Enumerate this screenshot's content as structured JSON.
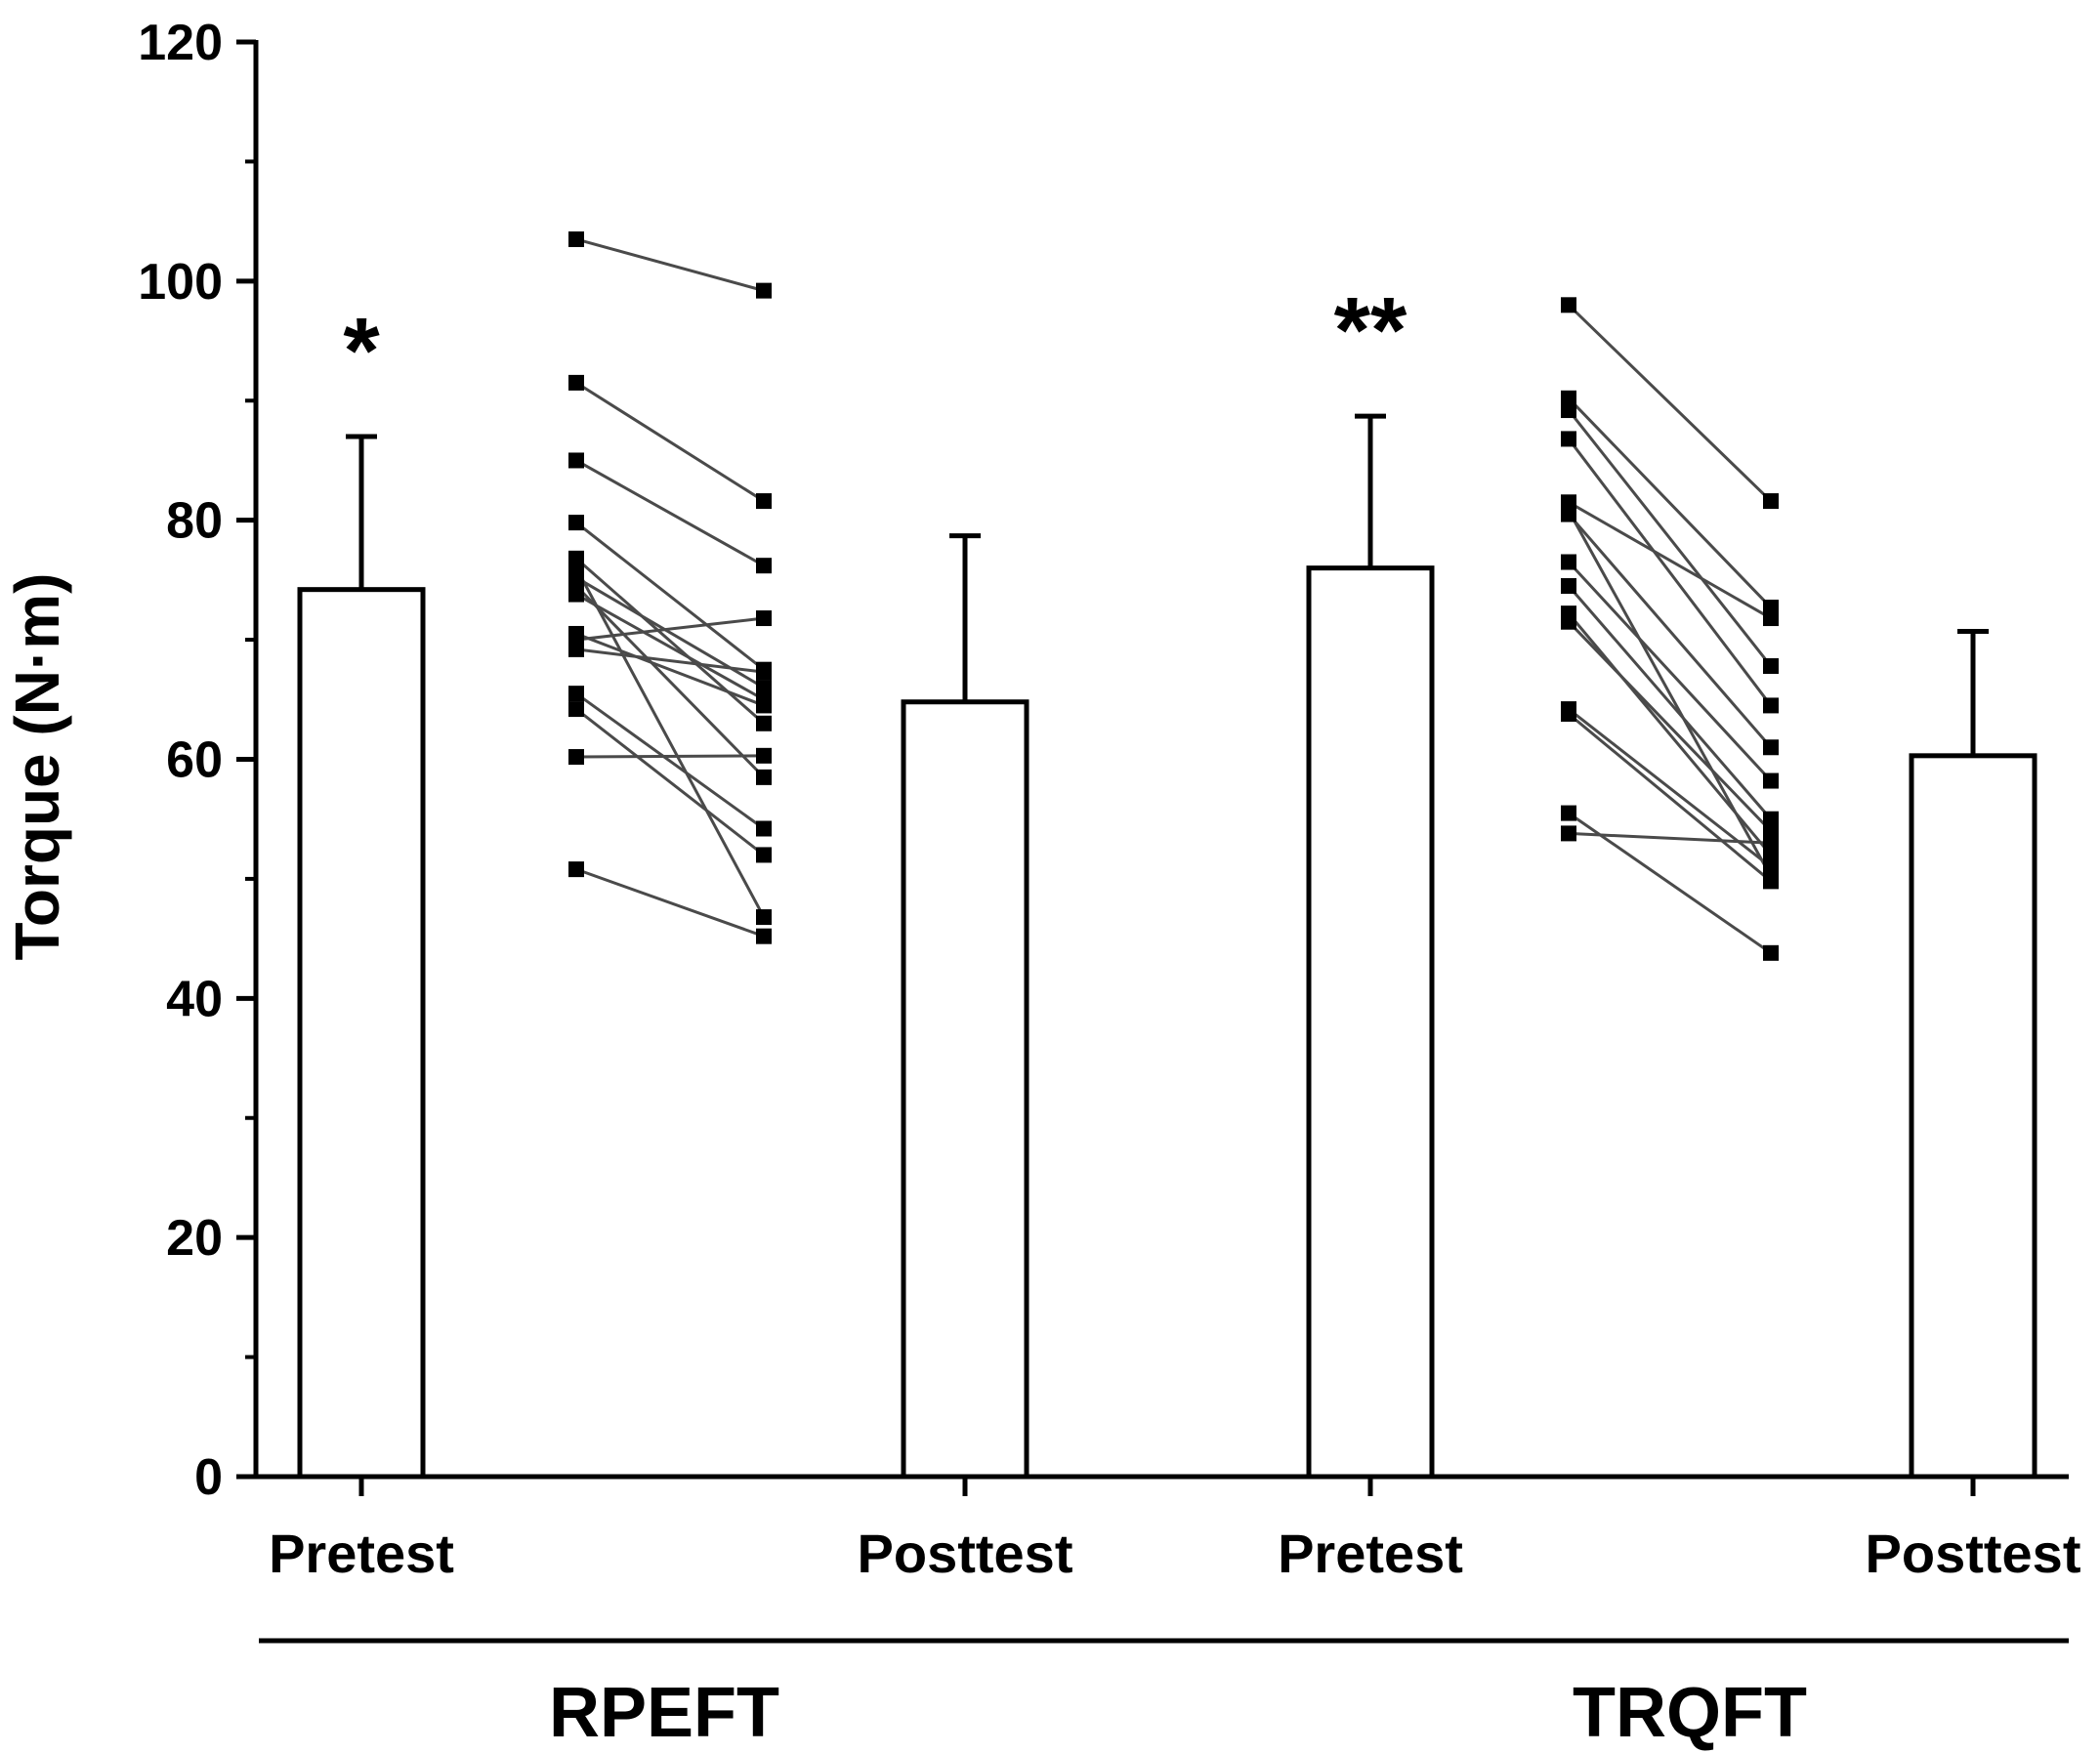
{
  "chart_data": {
    "type": "bar",
    "ylabel": "Torque (N·m)",
    "ylim": [
      0,
      120
    ],
    "y_ticks": [
      "0",
      "20",
      "40",
      "60",
      "80",
      "100",
      "120"
    ],
    "categories": [
      "Pretest",
      "Posttest",
      "Pretest",
      "Posttest"
    ],
    "group_labels": [
      "RPEFT",
      "TRQFT"
    ],
    "bars": [
      {
        "group": "RPEFT",
        "label": "Pretest",
        "mean": 74.2,
        "error": 12.8,
        "annotation": "*"
      },
      {
        "group": "RPEFT",
        "label": "Posttest",
        "mean": 64.8,
        "error": 13.9,
        "annotation": ""
      },
      {
        "group": "TRQFT",
        "label": "Pretest",
        "mean": 76.0,
        "error": 12.7,
        "annotation": "**"
      },
      {
        "group": "TRQFT",
        "label": "Posttest",
        "mean": 60.3,
        "error": 10.4,
        "annotation": ""
      }
    ],
    "individual_pairs": [
      {
        "group": "RPEFT",
        "pairs": [
          [
            103.5,
            99.2
          ],
          [
            91.5,
            81.6
          ],
          [
            85.0,
            76.2
          ],
          [
            79.8,
            67.5
          ],
          [
            76.8,
            63.0
          ],
          [
            76.0,
            46.8
          ],
          [
            75.2,
            66.0
          ],
          [
            74.5,
            58.5
          ],
          [
            73.8,
            65.0
          ],
          [
            70.5,
            64.5
          ],
          [
            70.0,
            71.8
          ],
          [
            69.2,
            67.3
          ],
          [
            65.5,
            54.2
          ],
          [
            64.2,
            52.0
          ],
          [
            60.2,
            60.3
          ],
          [
            50.8,
            45.2
          ]
        ]
      },
      {
        "group": "TRQFT",
        "pairs": [
          [
            98.0,
            81.6
          ],
          [
            90.2,
            72.7
          ],
          [
            89.2,
            67.8
          ],
          [
            86.8,
            64.5
          ],
          [
            81.5,
            71.8
          ],
          [
            80.8,
            50.2
          ],
          [
            80.5,
            61.0
          ],
          [
            76.5,
            58.2
          ],
          [
            74.5,
            55.0
          ],
          [
            72.2,
            52.0
          ],
          [
            71.5,
            54.0
          ],
          [
            64.2,
            51.0
          ],
          [
            63.8,
            49.8
          ],
          [
            55.5,
            43.8
          ],
          [
            53.8,
            53.0
          ]
        ]
      }
    ]
  }
}
